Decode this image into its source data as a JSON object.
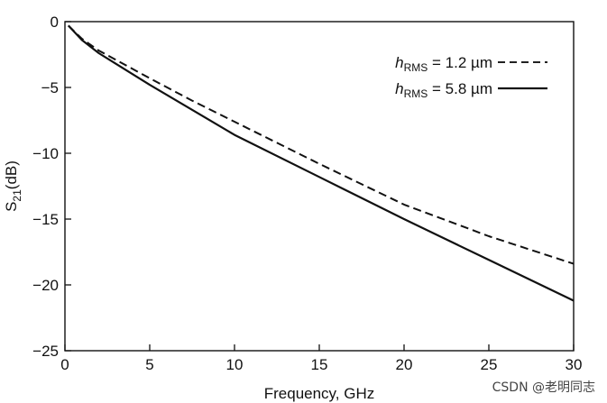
{
  "chart_data": {
    "type": "line",
    "xlabel": "Frequency, GHz",
    "ylabel": "S21(dB)",
    "ylabel_parts": {
      "main": "S",
      "sub": "21",
      "tail": "(dB)"
    },
    "xlim": [
      0,
      30
    ],
    "ylim": [
      -25,
      0
    ],
    "xticks": [
      0,
      5,
      10,
      15,
      20,
      25,
      30
    ],
    "yticks": [
      0,
      -5,
      -10,
      -15,
      -20,
      -25
    ],
    "xtick_labels": [
      "0",
      "5",
      "10",
      "15",
      "20",
      "25",
      "30"
    ],
    "ytick_labels": [
      "0",
      "−5",
      "−10",
      "−15",
      "−20",
      "−25"
    ],
    "grid": false,
    "legend_placement": "top-right",
    "series": [
      {
        "name": "hRMS = 1.2 µm",
        "name_parts": {
          "sym": "h",
          "sub": "RMS",
          "rest": " = 1.2 µm"
        },
        "style": "dashed",
        "x": [
          0.2,
          1,
          2,
          3,
          5,
          7.5,
          10,
          15,
          20,
          25,
          30
        ],
        "y": [
          -0.3,
          -1.3,
          -2.2,
          -2.9,
          -4.3,
          -6.0,
          -7.6,
          -10.8,
          -13.9,
          -16.3,
          -18.4
        ]
      },
      {
        "name": "hRMS = 5.8 µm",
        "name_parts": {
          "sym": "h",
          "sub": "RMS",
          "rest": " = 5.8 µm"
        },
        "style": "solid",
        "x": [
          0.2,
          1,
          2,
          3,
          5,
          7.5,
          10,
          15,
          20,
          25,
          30
        ],
        "y": [
          -0.3,
          -1.4,
          -2.4,
          -3.2,
          -4.8,
          -6.7,
          -8.6,
          -11.8,
          -15.0,
          -18.1,
          -21.2
        ]
      }
    ]
  },
  "watermark": "CSDN @老明同志"
}
